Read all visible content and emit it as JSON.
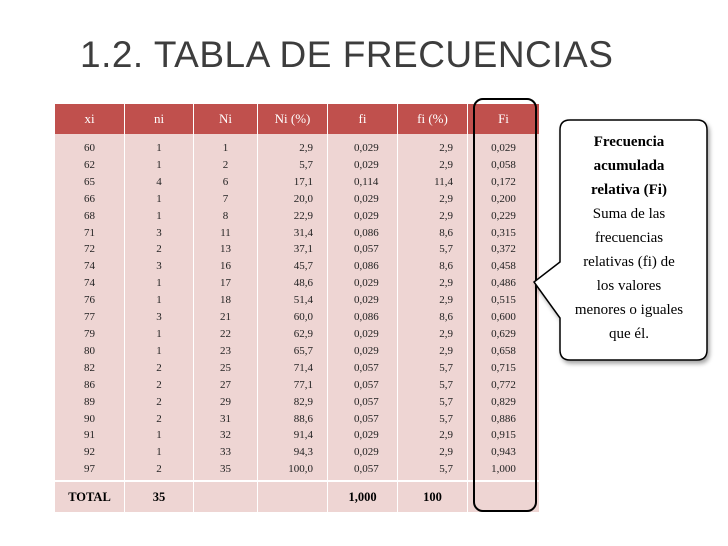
{
  "title": "1.2. TABLA DE FRECUENCIAS",
  "table": {
    "headers": [
      "xi",
      "ni",
      "Ni",
      "Ni (%)",
      "fi",
      "fi (%)",
      "Fi"
    ],
    "columns": [
      [
        "60",
        "62",
        "65",
        "66",
        "68",
        "71",
        "72",
        "74",
        "74",
        "76",
        "77",
        "79",
        "80",
        "82",
        "86",
        "89",
        "90",
        "91",
        "92",
        "97"
      ],
      [
        "1",
        "1",
        "4",
        "1",
        "1",
        "3",
        "2",
        "3",
        "1",
        "1",
        "3",
        "1",
        "1",
        "2",
        "2",
        "2",
        "2",
        "1",
        "1",
        "2"
      ],
      [
        "1",
        "2",
        "6",
        "7",
        "8",
        "11",
        "13",
        "16",
        "17",
        "18",
        "21",
        "22",
        "23",
        "25",
        "27",
        "29",
        "31",
        "32",
        "33",
        "35"
      ],
      [
        "2,9",
        "5,7",
        "17,1",
        "20,0",
        "22,9",
        "31,4",
        "37,1",
        "45,7",
        "48,6",
        "51,4",
        "60,0",
        "62,9",
        "65,7",
        "71,4",
        "77,1",
        "82,9",
        "88,6",
        "91,4",
        "94,3",
        "100,0"
      ],
      [
        "0,029",
        "0,029",
        "0,114",
        "0,029",
        "0,029",
        "0,086",
        "0,057",
        "0,086",
        "0,029",
        "0,029",
        "0,086",
        "0,029",
        "0,029",
        "0,057",
        "0,057",
        "0,057",
        "0,057",
        "0,029",
        "0,029",
        "0,057"
      ],
      [
        "2,9",
        "2,9",
        "11,4",
        "2,9",
        "2,9",
        "8,6",
        "5,7",
        "8,6",
        "2,9",
        "2,9",
        "8,6",
        "2,9",
        "2,9",
        "5,7",
        "5,7",
        "5,7",
        "5,7",
        "2,9",
        "2,9",
        "5,7"
      ],
      [
        "0,029",
        "0,058",
        "0,172",
        "0,200",
        "0,229",
        "0,315",
        "0,372",
        "0,458",
        "0,486",
        "0,515",
        "0,600",
        "0,629",
        "0,658",
        "0,715",
        "0,772",
        "0,829",
        "0,886",
        "0,915",
        "0,943",
        "1,000"
      ]
    ],
    "total_row": [
      "TOTAL",
      "35",
      "",
      "",
      "1,000",
      "100",
      ""
    ]
  },
  "callout": {
    "bold_lines": [
      "Frecuencia",
      "acumulada",
      "relativa (Fi)"
    ],
    "normal_lines": [
      "Suma de las",
      "frecuencias",
      "relativas (fi) de",
      "los valores",
      "menores o iguales",
      "que él."
    ]
  },
  "colors": {
    "header_bg": "#c0504d",
    "cell_bg": "#eed5d3",
    "title": "#3d3d3d"
  }
}
